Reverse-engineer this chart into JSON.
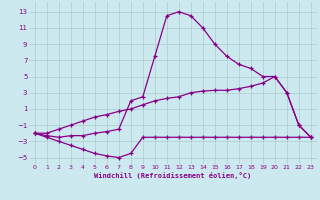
{
  "bg_color": "#cde9f0",
  "line_color": "#880088",
  "grid_color": "#aacccc",
  "xlabel": "Windchill (Refroidissement éolien,°C)",
  "yticks": [
    13,
    11,
    9,
    7,
    5,
    3,
    1,
    -1,
    -3,
    -5
  ],
  "xticks": [
    0,
    1,
    2,
    3,
    4,
    5,
    6,
    7,
    8,
    9,
    10,
    11,
    12,
    13,
    14,
    15,
    16,
    17,
    18,
    19,
    20,
    21,
    22,
    23
  ],
  "xlim": [
    -0.5,
    23.5
  ],
  "ylim": [
    -5.8,
    14.2
  ],
  "line1_x": [
    0,
    1,
    2,
    3,
    4,
    5,
    6,
    7,
    8,
    9,
    10,
    11,
    12,
    13,
    14,
    15,
    16,
    17,
    18,
    19,
    20,
    21,
    22,
    23
  ],
  "line1_y": [
    -2.0,
    -2.5,
    -3.0,
    -3.5,
    -4.0,
    -4.5,
    -4.8,
    -5.0,
    -4.5,
    -2.5,
    -2.5,
    -2.5,
    -2.5,
    -2.5,
    -2.5,
    -2.5,
    -2.5,
    -2.5,
    -2.5,
    -2.5,
    -2.5,
    -2.5,
    -2.5,
    -2.5
  ],
  "line2_x": [
    0,
    1,
    2,
    3,
    4,
    5,
    6,
    7,
    8,
    9,
    10,
    11,
    12,
    13,
    14,
    15,
    16,
    17,
    18,
    19,
    20,
    21,
    22,
    23
  ],
  "line2_y": [
    -2.0,
    -2.3,
    -2.5,
    -2.3,
    -2.3,
    -2.0,
    -1.8,
    -1.5,
    2.0,
    2.5,
    7.5,
    12.5,
    13.0,
    12.5,
    11.0,
    9.0,
    7.5,
    6.5,
    6.0,
    5.0,
    5.0,
    3.0,
    -1.0,
    -2.5
  ],
  "line3_x": [
    0,
    1,
    2,
    3,
    4,
    5,
    6,
    7,
    8,
    9,
    10,
    11,
    12,
    13,
    14,
    15,
    16,
    17,
    18,
    19,
    20,
    21,
    22,
    23
  ],
  "line3_y": [
    -2.0,
    -2.0,
    -1.5,
    -1.0,
    -0.5,
    0.0,
    0.3,
    0.7,
    1.0,
    1.5,
    2.0,
    2.3,
    2.5,
    3.0,
    3.2,
    3.3,
    3.3,
    3.5,
    3.8,
    4.2,
    5.0,
    3.0,
    -1.0,
    -2.5
  ]
}
